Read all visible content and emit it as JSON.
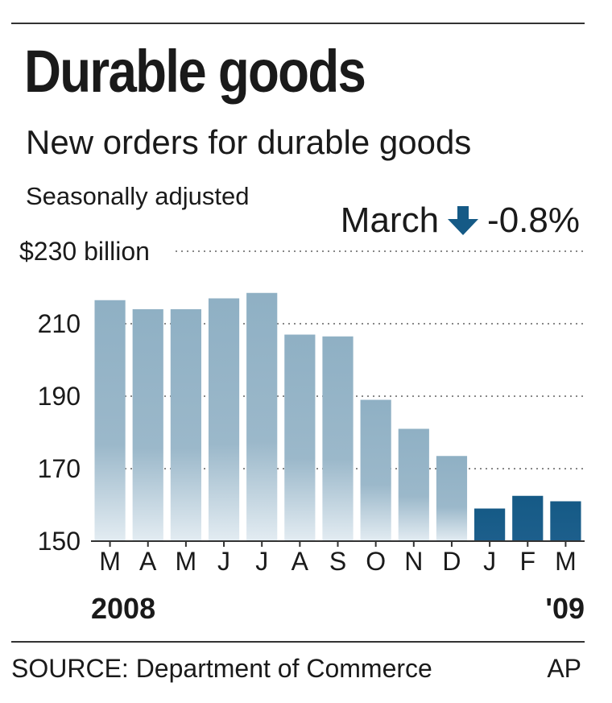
{
  "header": {
    "title": "Durable goods",
    "subtitle": "New orders for durable goods",
    "note": "Seasonally adjusted",
    "change_month": "March",
    "change_value": "-0.8%",
    "change_icon": "down-arrow-icon"
  },
  "footer": {
    "source": "SOURCE: Department of Commerce",
    "credit": "AP"
  },
  "colors": {
    "bar_2008": "#8fb0c4",
    "bar_2009": "#155a86",
    "arrow": "#155a86",
    "grid": "#888888"
  },
  "chart_data": {
    "type": "bar",
    "categories": [
      "M",
      "A",
      "M",
      "J",
      "J",
      "A",
      "S",
      "O",
      "N",
      "D",
      "J",
      "F",
      "M"
    ],
    "values": [
      216.5,
      214,
      214,
      217,
      218.5,
      207,
      206.5,
      189,
      181,
      173.5,
      159,
      162.5,
      161
    ],
    "highlight_from_index": 10,
    "year_labels": [
      {
        "text": "2008",
        "at_index": 0,
        "align": "start"
      },
      {
        "text": "'09",
        "at_index": 12,
        "align": "end"
      }
    ],
    "yticks": [
      230,
      210,
      190,
      170,
      150
    ],
    "ytick_labels": [
      "$230 billion",
      "210",
      "190",
      "170",
      "150"
    ],
    "ylim": [
      150,
      230
    ],
    "grid": true
  }
}
